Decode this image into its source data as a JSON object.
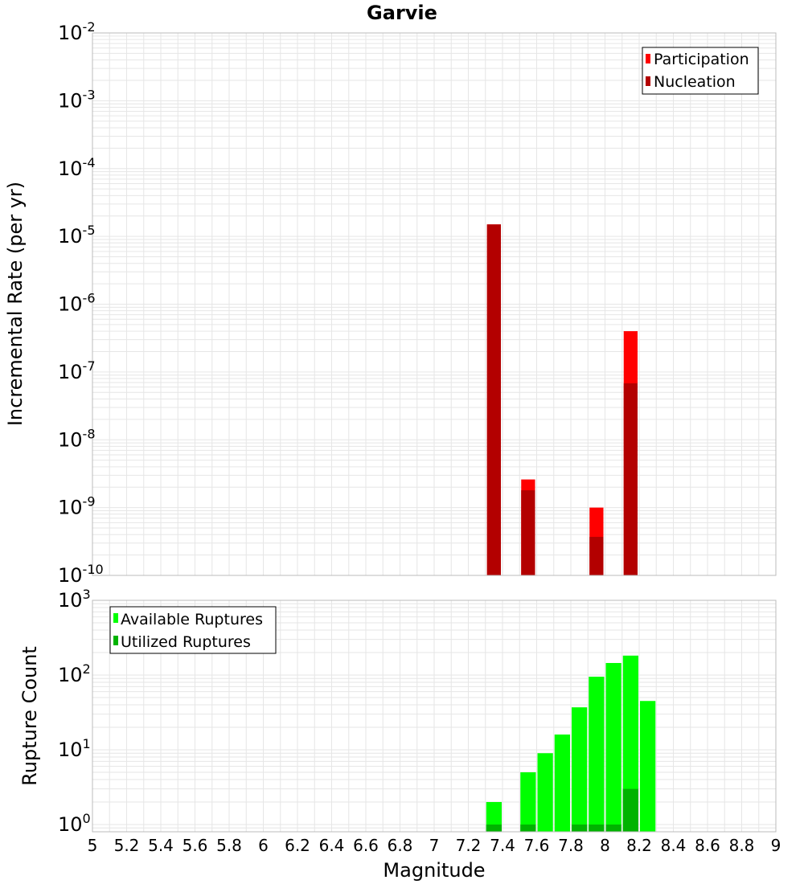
{
  "chart_data": [
    {
      "type": "bar",
      "title": "Garvie",
      "xlabel": "Magnitude",
      "ylabel": "Incremental Rate (per yr)",
      "yscale": "log",
      "ylim": [
        1e-10,
        0.01
      ],
      "xlim": [
        5,
        9
      ],
      "grid": true,
      "legend_position": "top-right",
      "bin_width": 0.1,
      "series": [
        {
          "name": "Participation",
          "color": "#ff0000",
          "points": [
            {
              "x": 7.35,
              "y": 1.5e-05
            },
            {
              "x": 7.55,
              "y": 2.6e-09
            },
            {
              "x": 7.95,
              "y": 1e-09
            },
            {
              "x": 8.15,
              "y": 4e-07
            }
          ]
        },
        {
          "name": "Nucleation",
          "color": "#b30000",
          "points": [
            {
              "x": 7.35,
              "y": 1.5e-05
            },
            {
              "x": 7.55,
              "y": 1.8e-09
            },
            {
              "x": 7.95,
              "y": 3.7e-10
            },
            {
              "x": 8.15,
              "y": 6.8e-08
            }
          ]
        }
      ]
    },
    {
      "type": "bar",
      "xlabel": "Magnitude",
      "ylabel": "Rupture Count",
      "yscale": "log",
      "ylim": [
        0.8,
        1000
      ],
      "xlim": [
        5,
        9
      ],
      "grid": true,
      "legend_position": "top-left",
      "bin_width": 0.1,
      "series": [
        {
          "name": "Available Ruptures",
          "color": "#00ff00",
          "points": [
            {
              "x": 7.35,
              "y": 2
            },
            {
              "x": 7.55,
              "y": 5
            },
            {
              "x": 7.65,
              "y": 9
            },
            {
              "x": 7.75,
              "y": 16
            },
            {
              "x": 7.85,
              "y": 37
            },
            {
              "x": 7.95,
              "y": 95
            },
            {
              "x": 8.05,
              "y": 145
            },
            {
              "x": 8.15,
              "y": 182
            },
            {
              "x": 8.25,
              "y": 45
            }
          ]
        },
        {
          "name": "Utilized Ruptures",
          "color": "#00b300",
          "points": [
            {
              "x": 7.35,
              "y": 1
            },
            {
              "x": 7.55,
              "y": 1
            },
            {
              "x": 7.85,
              "y": 1
            },
            {
              "x": 7.95,
              "y": 1
            },
            {
              "x": 8.05,
              "y": 1
            },
            {
              "x": 8.15,
              "y": 3
            }
          ]
        }
      ]
    }
  ],
  "x_ticks": [
    "5",
    "5.2",
    "5.4",
    "5.6",
    "5.8",
    "6",
    "6.2",
    "6.4",
    "6.6",
    "6.8",
    "7",
    "7.2",
    "7.4",
    "7.6",
    "7.8",
    "8",
    "8.2",
    "8.4",
    "8.6",
    "8.8",
    "9"
  ],
  "top_y_ticks": [
    {
      "base": "10",
      "exp": "-10",
      "value": 1e-10
    },
    {
      "base": "10",
      "exp": "-9",
      "value": 1e-09
    },
    {
      "base": "10",
      "exp": "-8",
      "value": 1e-08
    },
    {
      "base": "10",
      "exp": "-7",
      "value": 1e-07
    },
    {
      "base": "10",
      "exp": "-6",
      "value": 1e-06
    },
    {
      "base": "10",
      "exp": "-5",
      "value": 1e-05
    },
    {
      "base": "10",
      "exp": "-4",
      "value": 0.0001
    },
    {
      "base": "10",
      "exp": "-3",
      "value": 0.001
    },
    {
      "base": "10",
      "exp": "-2",
      "value": 0.01
    }
  ],
  "bottom_y_ticks": [
    {
      "base": "10",
      "exp": "0",
      "value": 1
    },
    {
      "base": "10",
      "exp": "1",
      "value": 10
    },
    {
      "base": "10",
      "exp": "2",
      "value": 100
    },
    {
      "base": "10",
      "exp": "3",
      "value": 1000
    }
  ],
  "colors": {
    "gridline": "#e6e6e6",
    "plot_border": "#bbbbbb"
  }
}
